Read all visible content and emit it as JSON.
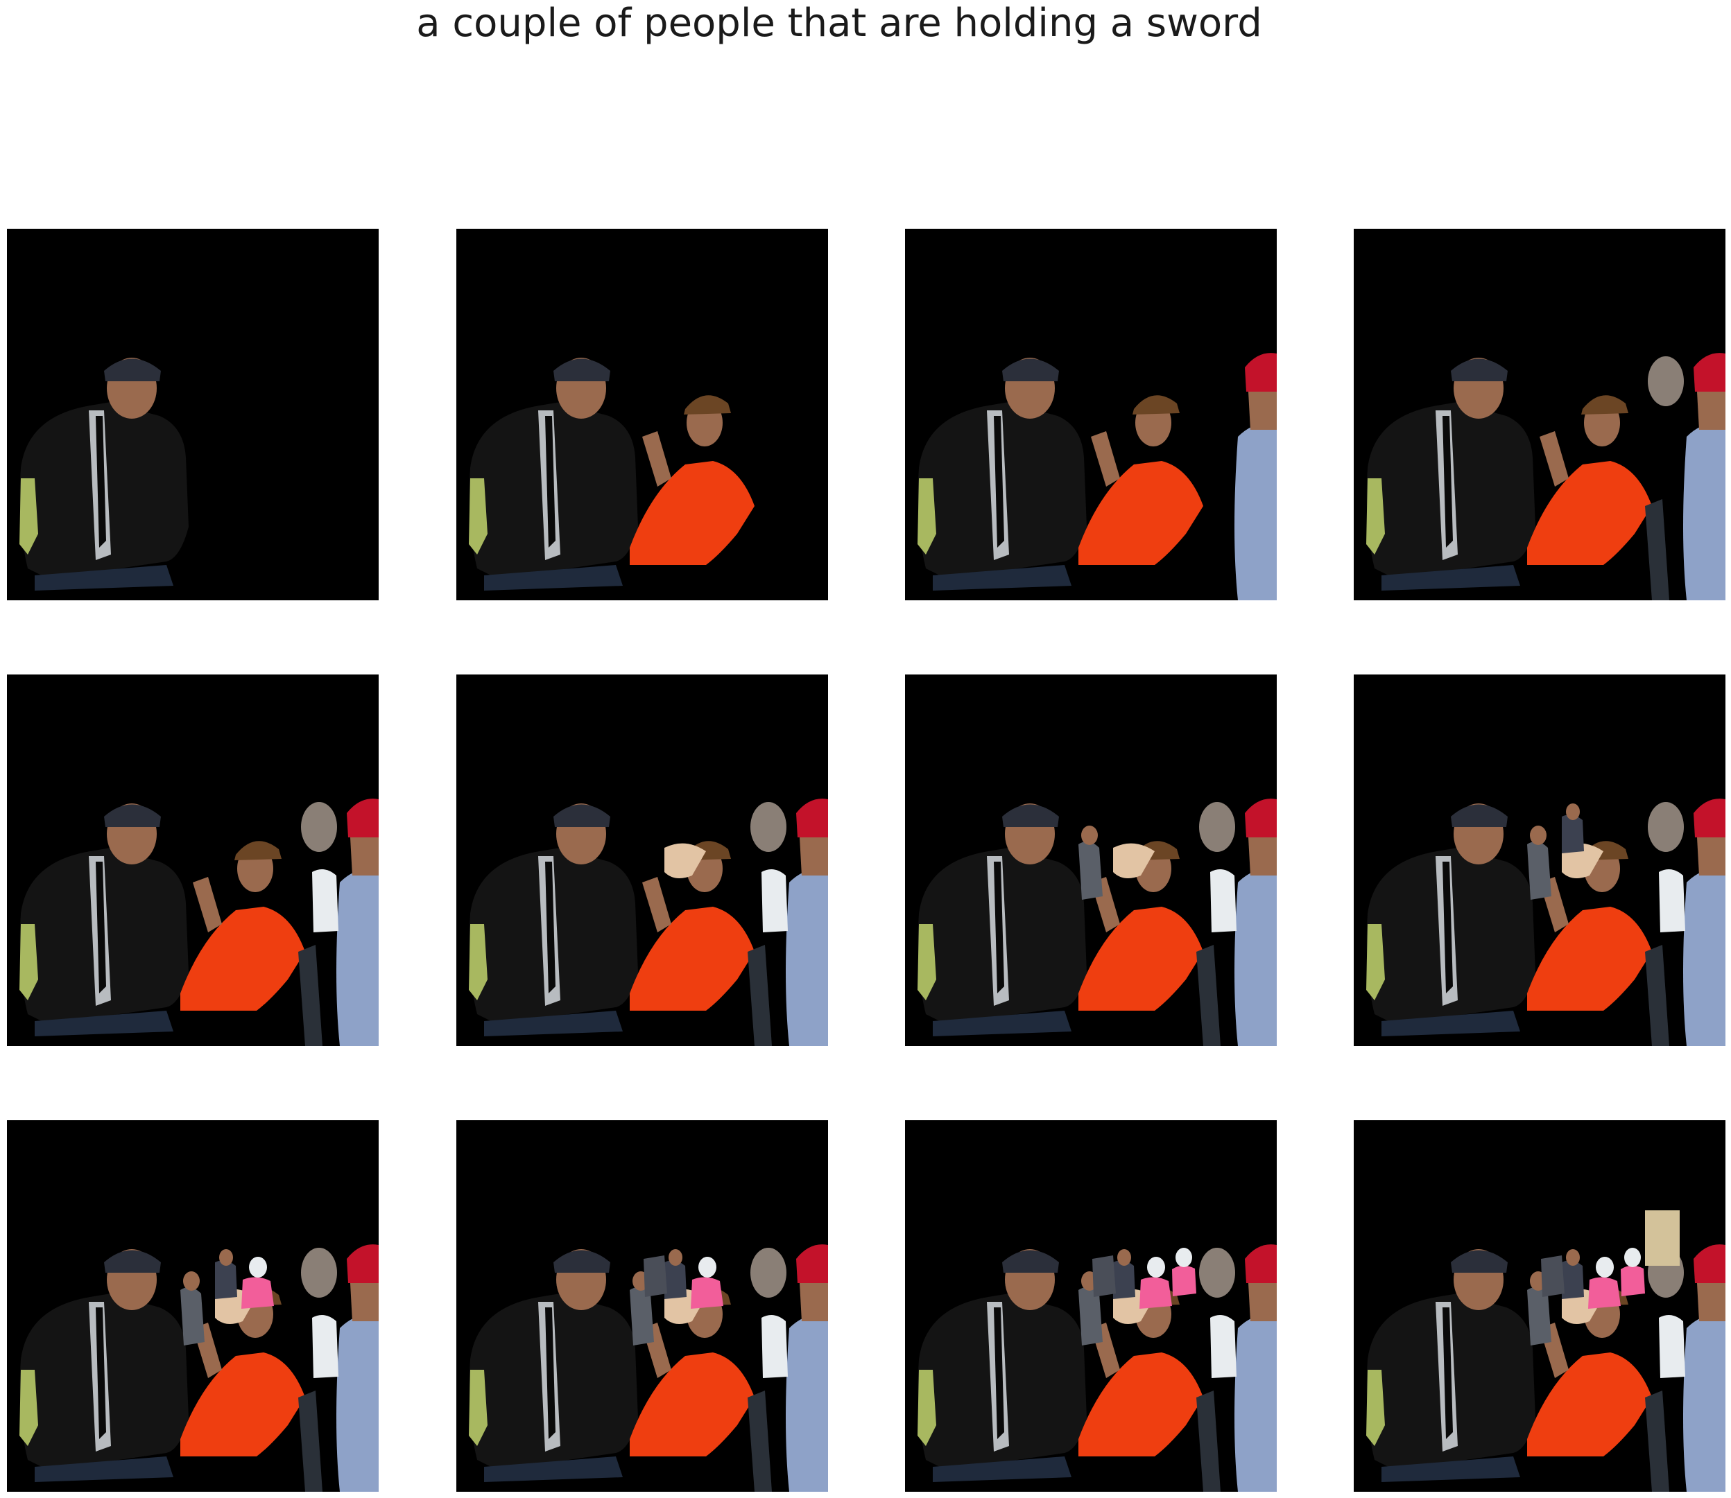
{
  "figure": {
    "title": "a couple of people that are holding a sword"
  },
  "grid": {
    "rows": 3,
    "cols": 4,
    "panels": [
      {
        "step": 1,
        "segments": [
          "man-black-shirt"
        ]
      },
      {
        "step": 2,
        "segments": [
          "man-black-shirt",
          "man-orange-shirt"
        ]
      },
      {
        "step": 3,
        "segments": [
          "man-black-shirt",
          "man-orange-shirt",
          "person-red-cap"
        ]
      },
      {
        "step": 4,
        "segments": [
          "man-black-shirt",
          "man-orange-shirt",
          "person-red-cap",
          "grey-head",
          "dark-figure"
        ]
      },
      {
        "step": 5,
        "segments": [
          "man-black-shirt",
          "man-orange-shirt",
          "person-red-cap",
          "grey-head",
          "dark-figure",
          "white-figure"
        ]
      },
      {
        "step": 6,
        "segments": [
          "man-black-shirt",
          "man-orange-shirt",
          "person-red-cap",
          "grey-head",
          "dark-figure",
          "white-figure",
          "beige-arm"
        ]
      },
      {
        "step": 7,
        "segments": [
          "man-black-shirt",
          "man-orange-shirt",
          "person-red-cap",
          "grey-head",
          "dark-figure",
          "white-figure",
          "beige-arm",
          "small-person-left"
        ]
      },
      {
        "step": 8,
        "segments": [
          "man-black-shirt",
          "man-orange-shirt",
          "person-red-cap",
          "grey-head",
          "dark-figure",
          "white-figure",
          "beige-arm",
          "small-person-left",
          "small-person-top"
        ]
      },
      {
        "step": 9,
        "segments": [
          "man-black-shirt",
          "man-orange-shirt",
          "person-red-cap",
          "grey-head",
          "dark-figure",
          "white-figure",
          "beige-arm",
          "small-person-left",
          "small-person-top",
          "pink-person"
        ]
      },
      {
        "step": 10,
        "segments": [
          "man-black-shirt",
          "man-orange-shirt",
          "person-red-cap",
          "grey-head",
          "dark-figure",
          "white-figure",
          "beige-arm",
          "small-person-left",
          "small-person-top",
          "pink-person",
          "group-center"
        ]
      },
      {
        "step": 11,
        "segments": [
          "man-black-shirt",
          "man-orange-shirt",
          "person-red-cap",
          "grey-head",
          "dark-figure",
          "white-figure",
          "beige-arm",
          "small-person-left",
          "small-person-top",
          "pink-person",
          "group-center",
          "second-pink"
        ]
      },
      {
        "step": 12,
        "segments": [
          "man-black-shirt",
          "man-orange-shirt",
          "person-red-cap",
          "grey-head",
          "dark-figure",
          "white-figure",
          "beige-arm",
          "small-person-left",
          "small-person-top",
          "pink-person",
          "group-center",
          "second-pink",
          "beige-box"
        ]
      }
    ]
  },
  "colors": {
    "background": "#000000",
    "black_shirt": "#141414",
    "tie_silver": "#b8bcc0",
    "tie_dark": "#0a0a0a",
    "skin": "#9a6a4e",
    "bandana": "#2b2f3a",
    "jeans": "#1f2a3c",
    "orange_shirt": "#ef3e10",
    "brown_hat": "#6b4524",
    "red_cap": "#c3122a",
    "blue_shirt": "#8ea2c8",
    "grey_hair": "#8a7f76",
    "white": "#e8ecef",
    "pink": "#f25e9a",
    "beige": "#d3c29a"
  }
}
